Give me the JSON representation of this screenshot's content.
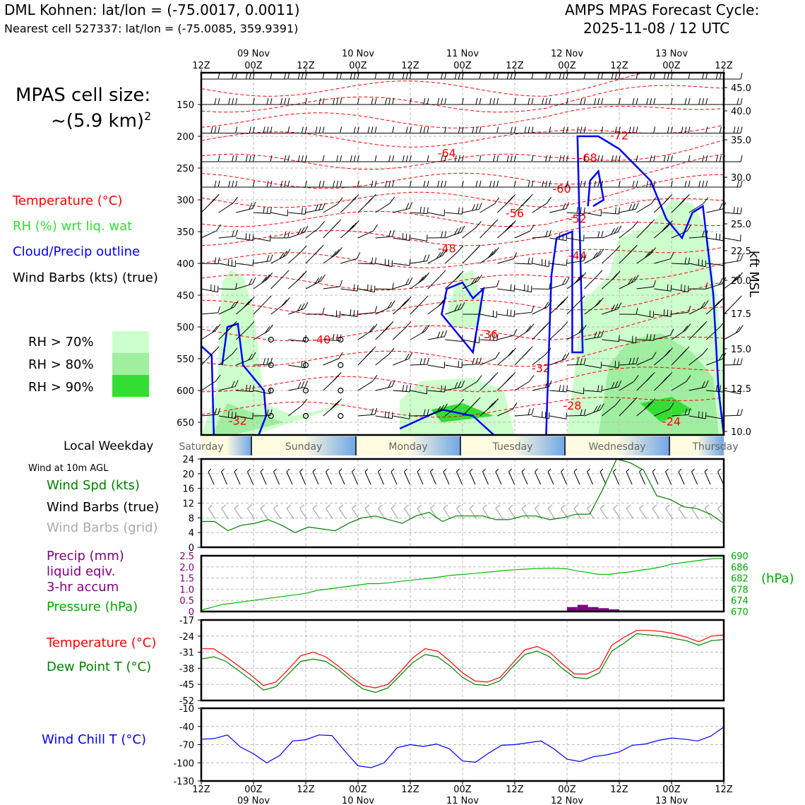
{
  "header": {
    "station": "DML Kohnen: lat/lon = (-75.0017, 0.0011)",
    "nearest": "Nearest cell 527337: lat/lon = (-75.0085, 359.9391)",
    "cycle_line1": "AMPS MPAS Forecast Cycle:",
    "cycle_line2": "2025-11-08 / 12 UTC"
  },
  "side": {
    "cell_size_line1": "MPAS cell size:",
    "cell_size_line2": "~(5.9 km)",
    "cell_size_sup": "2",
    "legend_temperature": "Temperature (°C)",
    "legend_rh": "RH (%) wrt liq. wat",
    "legend_cloud": "Cloud/Precip outline",
    "legend_wind": "Wind Barbs (kts) (true)",
    "rh70": "RH > 70%",
    "rh80": "RH > 80%",
    "rh90": "RH > 90%",
    "local_weekday": "Local Weekday",
    "wind10m": "Wind at 10m AGL",
    "wind_spd": "Wind Spd (kts)",
    "wind_barbs_true": "Wind Barbs (true)",
    "wind_barbs_grid": "Wind Barbs (grid)",
    "precip1": "Precip (mm)",
    "precip2": "liquid eqiv.",
    "precip3": "3-hr accum",
    "pressure": "Pressure (hPa)",
    "hpa_unit": "(hPa)",
    "temp": "Temperature (°C)",
    "dewpoint": "Dew Point T (°C)",
    "windchill": "Wind Chill T (°C)",
    "kft_msl": "kft MSL"
  },
  "colors": {
    "temp": "#ff0000",
    "rh": "#22cc22",
    "cloud": "#0000ff",
    "precip": "#800080",
    "grid_barb": "#aaaaaa",
    "rh70": "#ccffcc",
    "rh80": "#a0eea0",
    "rh90": "#33dd33"
  },
  "time_axis": {
    "hour_labels": [
      "12Z",
      "00Z",
      "12Z",
      "00Z",
      "12Z",
      "00Z",
      "12Z",
      "00Z",
      "12Z",
      "00Z",
      "12Z"
    ],
    "date_labels": [
      "09 Nov",
      "10 Nov",
      "11 Nov",
      "12 Nov",
      "13 Nov"
    ]
  },
  "weekdays": [
    "Saturday",
    "Sunday",
    "Monday",
    "Tuesday",
    "Wednesday",
    "Thursday"
  ],
  "chart_data": [
    {
      "type": "contour",
      "panel": "upper-air",
      "y_left_ticks": [
        "150",
        "200",
        "250",
        "300",
        "350",
        "400",
        "450",
        "500",
        "550",
        "600",
        "650"
      ],
      "y_right_ticks": [
        "45.0",
        "40.0",
        "35.0",
        "30.0",
        "25.0",
        "22.5",
        "20.0",
        "17.5",
        "15.0",
        "12.5",
        "10.0"
      ],
      "ylim": [
        100,
        670
      ],
      "temperature_labels": [
        {
          "text": "-72",
          "t": 4.0,
          "p": 205
        },
        {
          "text": "-68",
          "t": 3.7,
          "p": 240
        },
        {
          "text": "-64",
          "t": 2.35,
          "p": 233
        },
        {
          "text": "-60",
          "t": 3.45,
          "p": 289
        },
        {
          "text": "-56",
          "t": 3.0,
          "p": 327
        },
        {
          "text": "-52",
          "t": 3.6,
          "p": 336
        },
        {
          "text": "-48",
          "t": 2.35,
          "p": 383
        },
        {
          "text": "-44",
          "t": 3.6,
          "p": 394
        },
        {
          "text": "-40",
          "t": 1.15,
          "p": 526
        },
        {
          "text": "-36",
          "t": 2.75,
          "p": 518
        },
        {
          "text": "-32",
          "t": 0.35,
          "p": 654
        },
        {
          "text": "-32",
          "t": 3.25,
          "p": 571
        },
        {
          "text": "-28",
          "t": 3.55,
          "p": 630
        },
        {
          "text": "-24",
          "t": 4.5,
          "p": 655
        }
      ]
    },
    {
      "type": "line",
      "panel": "wind-speed",
      "ylabel": "",
      "ylim": [
        0,
        24
      ],
      "y_ticks": [
        0,
        4,
        8,
        12,
        16,
        20,
        24
      ],
      "x_step_hours": 3,
      "values": [
        7,
        7,
        4.5,
        6,
        6.5,
        7.5,
        6,
        4,
        5.5,
        5,
        4.5,
        6.5,
        8,
        8.5,
        7.5,
        6.5,
        8.5,
        9.5,
        7,
        8.5,
        8.5,
        8.5,
        7.5,
        7.5,
        8.5,
        8.5,
        7.5,
        8,
        9,
        9,
        16,
        24,
        23,
        21,
        14,
        13,
        11,
        10.5,
        9,
        6.5
      ]
    },
    {
      "type": "line+bar",
      "panel": "pressure-precip",
      "left_ticks": [
        "0",
        "0.5",
        "1.0",
        "1.5",
        "2.0",
        "2.5"
      ],
      "right_ticks": [
        "670",
        "674",
        "678",
        "682",
        "686",
        "690"
      ],
      "pressure_ylim": [
        670,
        690
      ],
      "precip_ylim": [
        0,
        2.5
      ],
      "pressure": [
        670.5,
        671.5,
        672.5,
        673.0,
        673.5,
        674.0,
        674.5,
        675.0,
        675.5,
        676.0,
        676.5,
        677.5,
        678.0,
        678.5,
        679.0,
        679.5,
        680.0,
        680.0,
        680.3,
        680.8,
        681.2,
        681.6,
        682.0,
        682.5,
        683.0,
        683.3,
        683.6,
        684.0,
        684.3,
        684.7,
        685.0,
        685.2,
        685.4,
        685.5,
        685.5,
        685.3,
        684.5,
        684.0,
        683.3,
        683.3,
        683.8,
        684.2,
        684.8,
        685.3,
        686.0,
        687.0,
        687.5,
        688.0,
        688.5,
        689.0,
        689.0
      ],
      "precip": [
        0,
        0,
        0,
        0,
        0,
        0,
        0,
        0,
        0,
        0,
        0,
        0,
        0,
        0,
        0,
        0,
        0,
        0,
        0,
        0,
        0,
        0,
        0,
        0,
        0,
        0,
        0,
        0,
        0,
        0,
        0,
        0,
        0,
        0,
        0,
        0.2,
        0.3,
        0.2,
        0.15,
        0.1,
        0.05,
        0.05,
        0,
        0,
        0,
        0,
        0,
        0,
        0,
        0
      ]
    },
    {
      "type": "line",
      "panel": "temperature",
      "ylim": [
        -52,
        -17
      ],
      "y_ticks": [
        -52,
        -45,
        -38,
        -31,
        -24,
        -17
      ],
      "series": [
        {
          "name": "Temperature (°C)",
          "values": [
            -29.5,
            -29.5,
            -33,
            -37,
            -41,
            -45.5,
            -44,
            -38.5,
            -32.5,
            -31,
            -33,
            -37,
            -41.5,
            -45.5,
            -46.5,
            -45,
            -39.5,
            -33.5,
            -29.5,
            -30.5,
            -35,
            -40,
            -43.5,
            -44,
            -42,
            -36,
            -30,
            -28.5,
            -31,
            -36,
            -40.5,
            -40.5,
            -38,
            -28,
            -24.5,
            -21.5,
            -21.5,
            -22,
            -23,
            -24.5,
            -26.5,
            -24,
            -23.5
          ]
        },
        {
          "name": "Dew Point T (°C)",
          "values": [
            -34,
            -33,
            -35,
            -39,
            -43,
            -47.5,
            -46,
            -40.5,
            -35,
            -34,
            -35,
            -38.5,
            -43,
            -47,
            -48.5,
            -46.5,
            -41,
            -35.5,
            -32,
            -33,
            -37,
            -42,
            -45,
            -45.5,
            -43.5,
            -37.5,
            -32,
            -30.5,
            -33,
            -38,
            -42,
            -42.5,
            -40,
            -30.5,
            -27,
            -23,
            -23.5,
            -24,
            -25,
            -26,
            -28,
            -26,
            -25.5
          ]
        }
      ]
    },
    {
      "type": "line",
      "panel": "wind-chill",
      "ylim": [
        -130,
        -10
      ],
      "y_ticks": [
        -130,
        -100,
        -70,
        -40,
        -10
      ],
      "values": [
        -61,
        -60,
        -54,
        -74,
        -85,
        -100,
        -88,
        -64,
        -62,
        -54,
        -55,
        -81,
        -105,
        -108,
        -100,
        -75,
        -70,
        -73,
        -69,
        -77,
        -97,
        -99,
        -84,
        -71,
        -70,
        -67,
        -64,
        -77,
        -94,
        -98,
        -90,
        -87,
        -82,
        -71,
        -69,
        -63,
        -59,
        -61,
        -64,
        -56,
        -41
      ]
    }
  ]
}
